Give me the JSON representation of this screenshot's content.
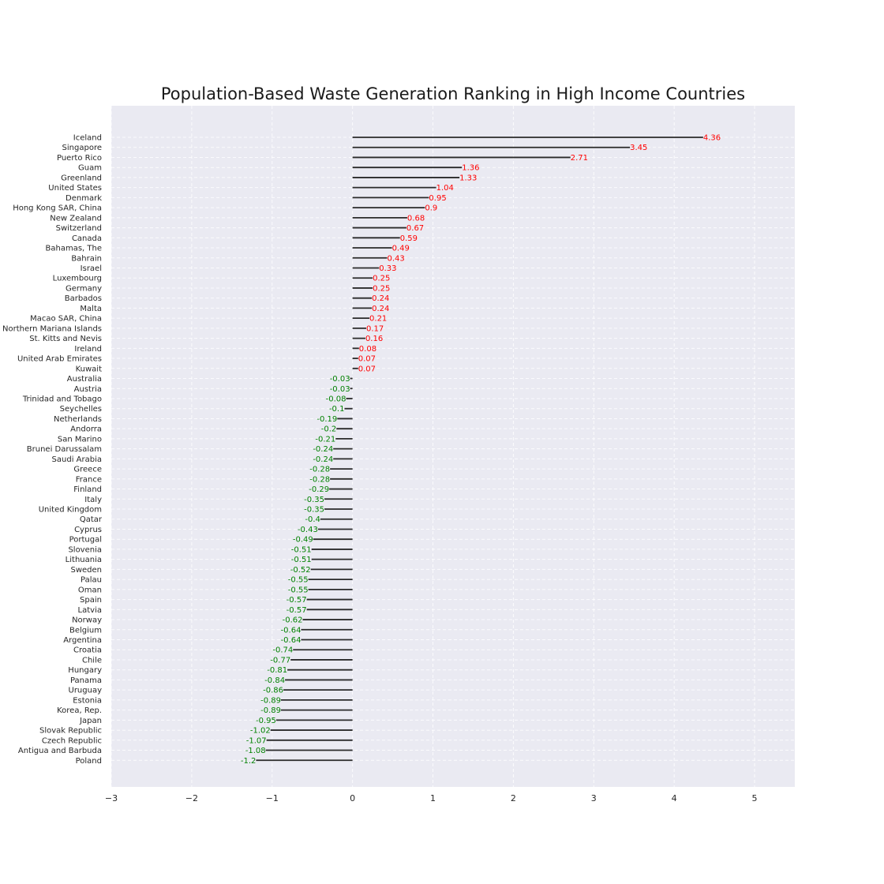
{
  "chart_data": {
    "type": "bar",
    "orientation": "horizontal",
    "title": "Population-Based Waste Generation Ranking in High Income Countries",
    "xlabel": "",
    "ylabel": "",
    "xlim": [
      -3,
      5.5
    ],
    "xticks": [
      -3,
      -2,
      -1,
      0,
      1,
      2,
      3,
      4,
      5
    ],
    "xtick_labels": [
      "−3",
      "−2",
      "−1",
      "0",
      "1",
      "2",
      "3",
      "4",
      "5"
    ],
    "grid": true,
    "positive_color": "#ff0000",
    "negative_color": "#008000",
    "line_color": "#2a2a2a",
    "background_color": "#eaeaf2",
    "categories": [
      "Iceland",
      "Singapore",
      "Puerto Rico",
      "Guam",
      "Greenland",
      "United States",
      "Denmark",
      "Hong Kong SAR, China",
      "New Zealand",
      "Switzerland",
      "Canada",
      "Bahamas, The",
      "Bahrain",
      "Israel",
      "Luxembourg",
      "Germany",
      "Barbados",
      "Malta",
      "Macao SAR, China",
      "Northern Mariana Islands",
      "St. Kitts and Nevis",
      "Ireland",
      "United Arab Emirates",
      "Kuwait",
      "Australia",
      "Austria",
      "Trinidad and Tobago",
      "Seychelles",
      "Netherlands",
      "Andorra",
      "San Marino",
      "Brunei Darussalam",
      "Saudi Arabia",
      "Greece",
      "France",
      "Finland",
      "Italy",
      "United Kingdom",
      "Qatar",
      "Cyprus",
      "Portugal",
      "Slovenia",
      "Lithuania",
      "Sweden",
      "Palau",
      "Oman",
      "Spain",
      "Latvia",
      "Norway",
      "Belgium",
      "Argentina",
      "Croatia",
      "Chile",
      "Hungary",
      "Panama",
      "Uruguay",
      "Estonia",
      "Korea, Rep.",
      "Japan",
      "Slovak Republic",
      "Czech Republic",
      "Antigua and Barbuda",
      "Poland"
    ],
    "values": [
      4.36,
      3.45,
      2.71,
      1.36,
      1.33,
      1.04,
      0.95,
      0.9,
      0.68,
      0.67,
      0.59,
      0.49,
      0.43,
      0.33,
      0.25,
      0.25,
      0.24,
      0.24,
      0.21,
      0.17,
      0.16,
      0.08,
      0.07,
      0.07,
      -0.03,
      -0.03,
      -0.08,
      -0.1,
      -0.19,
      -0.2,
      -0.21,
      -0.24,
      -0.24,
      -0.28,
      -0.28,
      -0.29,
      -0.35,
      -0.35,
      -0.4,
      -0.43,
      -0.49,
      -0.51,
      -0.51,
      -0.52,
      -0.55,
      -0.55,
      -0.57,
      -0.57,
      -0.62,
      -0.64,
      -0.64,
      -0.74,
      -0.77,
      -0.81,
      -0.84,
      -0.86,
      -0.89,
      -0.89,
      -0.95,
      -1.02,
      -1.07,
      -1.08,
      -1.2
    ]
  }
}
